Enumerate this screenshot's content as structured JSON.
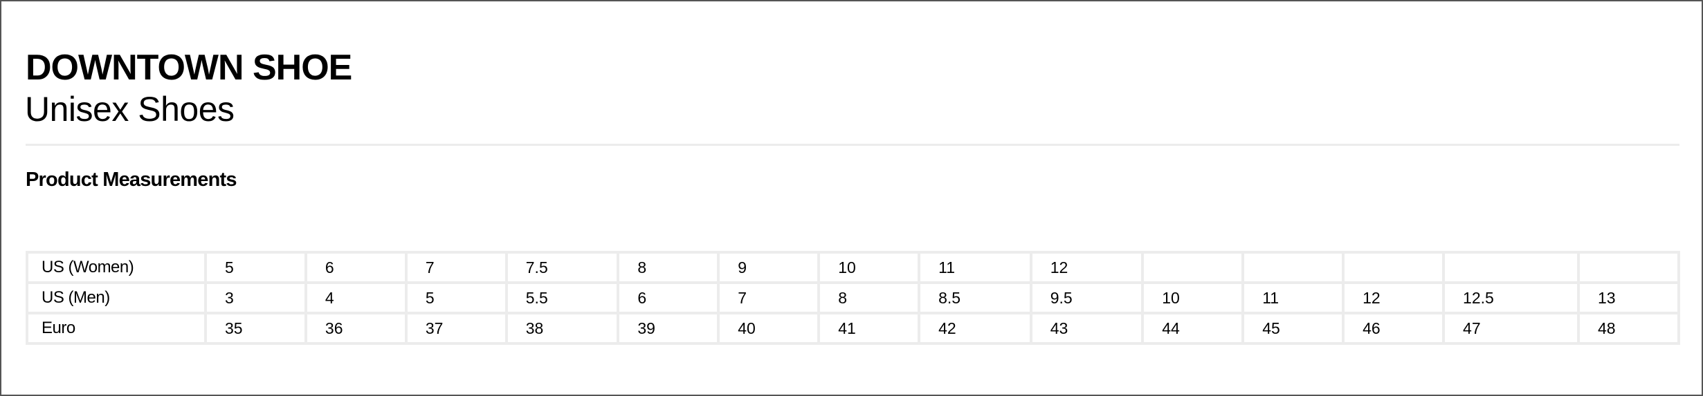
{
  "header": {
    "title": "DOWNTOWN SHOE",
    "subtitle": "Unisex Shoes"
  },
  "section_title": "Product Measurements",
  "size_table": {
    "rows": [
      {
        "label": "US (Women)",
        "values": [
          "5",
          "6",
          "7",
          "7.5",
          "8",
          "9",
          "10",
          "11",
          "12",
          "",
          "",
          "",
          "",
          ""
        ]
      },
      {
        "label": "US (Men)",
        "values": [
          "3",
          "4",
          "5",
          "5.5",
          "6",
          "7",
          "8",
          "8.5",
          "9.5",
          "10",
          "11",
          "12",
          "12.5",
          "13"
        ]
      },
      {
        "label": "Euro",
        "values": [
          "35",
          "36",
          "37",
          "38",
          "39",
          "40",
          "41",
          "42",
          "43",
          "44",
          "45",
          "46",
          "47",
          "48"
        ]
      }
    ]
  },
  "colors": {
    "border": "#ececec",
    "frame": "#555555",
    "text": "#000000"
  }
}
